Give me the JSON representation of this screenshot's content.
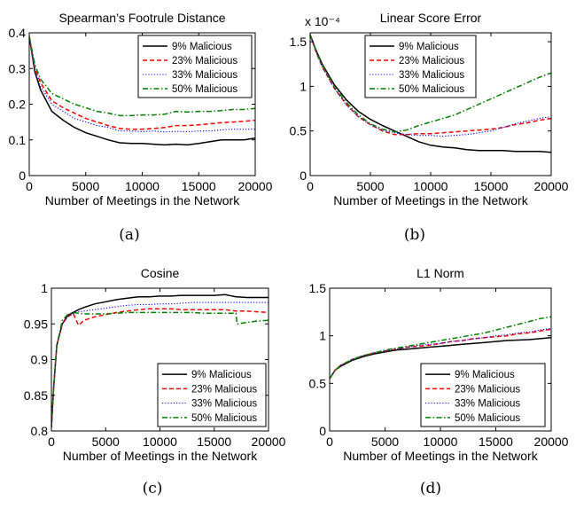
{
  "chart_data": [
    {
      "type": "line",
      "caption": "(a)",
      "title": "Spearman’s Footrule Distance",
      "xlabel": "Number of Meetings in the Network",
      "ylabel": "",
      "exponent": "",
      "xlim": [
        0,
        20000
      ],
      "ylim": [
        0,
        0.4
      ],
      "xticks": [
        "0",
        "5000",
        "10000",
        "15000",
        "20000"
      ],
      "yticks": [
        "0",
        "0.1",
        "0.2",
        "0.3",
        "0.4"
      ],
      "legend_position": "top-right",
      "x": [
        0,
        500,
        1000,
        2000,
        3000,
        4000,
        5000,
        6000,
        7000,
        8000,
        9000,
        10000,
        11000,
        12000,
        13000,
        14000,
        15000,
        16000,
        17000,
        18000,
        19000,
        20000
      ],
      "series": [
        {
          "name": "9% Malicious",
          "color": "#000000",
          "dash": "solid",
          "values": [
            0.39,
            0.29,
            0.24,
            0.18,
            0.155,
            0.135,
            0.12,
            0.11,
            0.1,
            0.092,
            0.09,
            0.09,
            0.088,
            0.086,
            0.088,
            0.086,
            0.09,
            0.095,
            0.1,
            0.1,
            0.1,
            0.105
          ]
        },
        {
          "name": "23% Malicious",
          "color": "#ff0000",
          "dash": "dashed",
          "values": [
            0.39,
            0.3,
            0.26,
            0.21,
            0.19,
            0.175,
            0.16,
            0.15,
            0.14,
            0.132,
            0.13,
            0.13,
            0.132,
            0.135,
            0.14,
            0.14,
            0.142,
            0.145,
            0.148,
            0.15,
            0.152,
            0.155
          ]
        },
        {
          "name": "33% Malicious",
          "color": "#0000ff",
          "dash": "dotted",
          "values": [
            0.39,
            0.29,
            0.25,
            0.2,
            0.18,
            0.16,
            0.15,
            0.14,
            0.135,
            0.125,
            0.125,
            0.123,
            0.125,
            0.122,
            0.124,
            0.123,
            0.125,
            0.125,
            0.128,
            0.13,
            0.13,
            0.13
          ]
        },
        {
          "name": "50% Malicious",
          "color": "#008000",
          "dash": "dashdot",
          "values": [
            0.39,
            0.31,
            0.27,
            0.23,
            0.215,
            0.2,
            0.19,
            0.18,
            0.175,
            0.168,
            0.168,
            0.17,
            0.17,
            0.172,
            0.18,
            0.178,
            0.18,
            0.18,
            0.182,
            0.185,
            0.185,
            0.188
          ]
        }
      ]
    },
    {
      "type": "line",
      "caption": "(b)",
      "title": "Linear Score Error",
      "xlabel": "Number of Meetings in the Network",
      "ylabel": "",
      "exponent": "x 10⁻⁴",
      "xlim": [
        0,
        20000
      ],
      "ylim": [
        0,
        1.6
      ],
      "xticks": [
        "0",
        "5000",
        "10000",
        "15000",
        "20000"
      ],
      "yticks": [
        "0",
        "0.5",
        "1",
        "1.5"
      ],
      "legend_position": "top-right",
      "x": [
        0,
        500,
        1000,
        2000,
        3000,
        4000,
        5000,
        6000,
        7000,
        8000,
        9000,
        10000,
        11000,
        12000,
        13000,
        14000,
        15000,
        16000,
        17000,
        18000,
        19000,
        20000
      ],
      "series": [
        {
          "name": "9% Malicious",
          "color": "#000000",
          "dash": "solid",
          "values": [
            1.58,
            1.4,
            1.25,
            1.02,
            0.85,
            0.72,
            0.63,
            0.56,
            0.5,
            0.44,
            0.38,
            0.34,
            0.32,
            0.31,
            0.29,
            0.28,
            0.28,
            0.28,
            0.27,
            0.27,
            0.27,
            0.26
          ]
        },
        {
          "name": "23% Malicious",
          "color": "#ff0000",
          "dash": "dashed",
          "values": [
            1.58,
            1.38,
            1.22,
            0.98,
            0.8,
            0.66,
            0.57,
            0.5,
            0.46,
            0.46,
            0.47,
            0.47,
            0.48,
            0.49,
            0.5,
            0.51,
            0.52,
            0.54,
            0.57,
            0.59,
            0.62,
            0.64
          ]
        },
        {
          "name": "33% Malicious",
          "color": "#0000ff",
          "dash": "dotted",
          "values": [
            1.58,
            1.38,
            1.22,
            0.98,
            0.79,
            0.66,
            0.57,
            0.51,
            0.48,
            0.46,
            0.45,
            0.45,
            0.44,
            0.45,
            0.46,
            0.48,
            0.5,
            0.54,
            0.58,
            0.61,
            0.64,
            0.66
          ]
        },
        {
          "name": "50% Malicious",
          "color": "#008000",
          "dash": "dashdot",
          "values": [
            1.58,
            1.39,
            1.24,
            1.0,
            0.82,
            0.68,
            0.58,
            0.52,
            0.49,
            0.51,
            0.56,
            0.6,
            0.64,
            0.68,
            0.74,
            0.8,
            0.86,
            0.92,
            0.98,
            1.04,
            1.1,
            1.15
          ]
        }
      ]
    },
    {
      "type": "line",
      "caption": "(c)",
      "title": "Cosine",
      "xlabel": "Number of Meetings in the Network",
      "ylabel": "",
      "exponent": "",
      "xlim": [
        0,
        20000
      ],
      "ylim": [
        0.8,
        1
      ],
      "xticks": [
        "0",
        "5000",
        "10000",
        "15000",
        "20000"
      ],
      "yticks": [
        "0.8",
        "0.85",
        "0.9",
        "0.95",
        "1"
      ],
      "legend_position": "bottom-right",
      "x": [
        0,
        200,
        500,
        1000,
        1500,
        2000,
        2500,
        3000,
        4000,
        5000,
        6000,
        7000,
        8000,
        9000,
        10000,
        11000,
        12000,
        13000,
        14000,
        15000,
        16000,
        17000,
        17100,
        18000,
        19000,
        20000
      ],
      "series": [
        {
          "name": "9% Malicious",
          "color": "#000000",
          "dash": "solid",
          "values": [
            0.805,
            0.86,
            0.92,
            0.95,
            0.962,
            0.966,
            0.97,
            0.973,
            0.978,
            0.981,
            0.984,
            0.986,
            0.988,
            0.988,
            0.989,
            0.989,
            0.99,
            0.99,
            0.99,
            0.99,
            0.991,
            0.988,
            0.988,
            0.987,
            0.987,
            0.987
          ]
        },
        {
          "name": "23% Malicious",
          "color": "#ff0000",
          "dash": "dashed",
          "values": [
            0.805,
            0.86,
            0.92,
            0.95,
            0.96,
            0.965,
            0.948,
            0.955,
            0.96,
            0.963,
            0.966,
            0.968,
            0.97,
            0.971,
            0.971,
            0.971,
            0.97,
            0.97,
            0.97,
            0.97,
            0.97,
            0.968,
            0.968,
            0.968,
            0.967,
            0.966
          ]
        },
        {
          "name": "33% Malicious",
          "color": "#0000ff",
          "dash": "dotted",
          "values": [
            0.805,
            0.86,
            0.92,
            0.95,
            0.96,
            0.964,
            0.967,
            0.968,
            0.97,
            0.972,
            0.974,
            0.976,
            0.977,
            0.977,
            0.978,
            0.978,
            0.979,
            0.98,
            0.98,
            0.98,
            0.98,
            0.98,
            0.98,
            0.98,
            0.98,
            0.98
          ]
        },
        {
          "name": "50% Malicious",
          "color": "#008000",
          "dash": "dashdot",
          "values": [
            0.805,
            0.86,
            0.92,
            0.955,
            0.963,
            0.966,
            0.965,
            0.964,
            0.964,
            0.964,
            0.965,
            0.966,
            0.966,
            0.966,
            0.966,
            0.966,
            0.966,
            0.966,
            0.965,
            0.965,
            0.965,
            0.965,
            0.95,
            0.952,
            0.954,
            0.955
          ]
        }
      ]
    },
    {
      "type": "line",
      "caption": "(d)",
      "title": "L1 Norm",
      "xlabel": "Number of Meetings in the Network",
      "ylabel": "",
      "exponent": "",
      "xlim": [
        0,
        20000
      ],
      "ylim": [
        0,
        1.5
      ],
      "xticks": [
        "0",
        "5000",
        "10000",
        "15000",
        "20000"
      ],
      "yticks": [
        "0",
        "0.5",
        "1",
        "1.5"
      ],
      "legend_position": "bottom-right",
      "x": [
        0,
        500,
        1000,
        2000,
        3000,
        4000,
        5000,
        6000,
        7000,
        8000,
        9000,
        10000,
        11000,
        12000,
        13000,
        14000,
        15000,
        16000,
        17000,
        18000,
        19000,
        20000
      ],
      "series": [
        {
          "name": "9% Malicious",
          "color": "#000000",
          "dash": "solid",
          "values": [
            0.55,
            0.64,
            0.68,
            0.74,
            0.78,
            0.81,
            0.83,
            0.85,
            0.86,
            0.87,
            0.88,
            0.89,
            0.9,
            0.91,
            0.92,
            0.93,
            0.94,
            0.95,
            0.955,
            0.96,
            0.97,
            0.98
          ]
        },
        {
          "name": "23% Malicious",
          "color": "#ff0000",
          "dash": "dashed",
          "values": [
            0.55,
            0.64,
            0.69,
            0.75,
            0.79,
            0.82,
            0.84,
            0.86,
            0.88,
            0.89,
            0.9,
            0.92,
            0.94,
            0.95,
            0.97,
            0.98,
            0.99,
            1.0,
            1.02,
            1.03,
            1.05,
            1.07
          ]
        },
        {
          "name": "33% Malicious",
          "color": "#0000ff",
          "dash": "dotted",
          "values": [
            0.55,
            0.64,
            0.69,
            0.75,
            0.79,
            0.82,
            0.84,
            0.86,
            0.88,
            0.9,
            0.91,
            0.92,
            0.94,
            0.95,
            0.97,
            0.98,
            1.0,
            1.01,
            1.03,
            1.04,
            1.06,
            1.08
          ]
        },
        {
          "name": "50% Malicious",
          "color": "#008000",
          "dash": "dashdot",
          "values": [
            0.55,
            0.64,
            0.69,
            0.75,
            0.79,
            0.82,
            0.85,
            0.87,
            0.89,
            0.91,
            0.93,
            0.95,
            0.97,
            0.99,
            1.01,
            1.03,
            1.06,
            1.09,
            1.12,
            1.15,
            1.18,
            1.2
          ]
        }
      ]
    }
  ]
}
